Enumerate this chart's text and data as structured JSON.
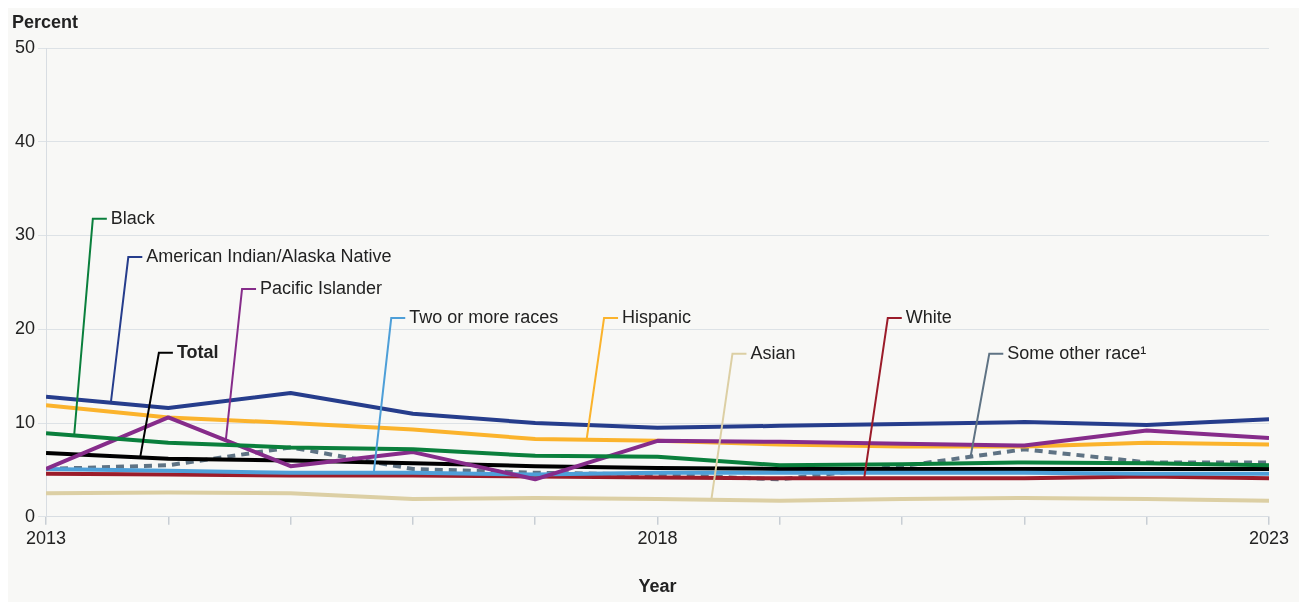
{
  "chart_data": {
    "type": "line",
    "xlabel": "Year",
    "ylabel": "Percent",
    "x": [
      2013,
      2014,
      2015,
      2016,
      2017,
      2018,
      2019,
      2020,
      2021,
      2022,
      2023
    ],
    "xlim": [
      2013,
      2023
    ],
    "xticks": [
      2013,
      {
        "value": 2014,
        "label": null
      },
      {
        "value": 2015,
        "label": null
      },
      {
        "value": 2016,
        "label": null
      },
      {
        "value": 2017,
        "label": null
      },
      2018,
      {
        "value": 2019,
        "label": null
      },
      {
        "value": 2020,
        "label": null
      },
      {
        "value": 2021,
        "label": null
      },
      {
        "value": 2022,
        "label": null
      },
      2023
    ],
    "ylim": [
      0,
      50
    ],
    "yticks": [
      0,
      10,
      20,
      30,
      40,
      50
    ],
    "grid": "y",
    "legend": false,
    "marker": "none",
    "series": [
      {
        "name": "Black",
        "color": "#0a7f3c",
        "values": [
          8.9,
          7.9,
          7.4,
          7.2,
          6.5,
          6.4,
          5.5,
          5.6,
          5.8,
          5.7,
          5.5
        ]
      },
      {
        "name": "American Indian/Alaska Native",
        "color": "#263d8c",
        "values": [
          12.8,
          11.6,
          13.2,
          11.0,
          10.0,
          9.5,
          9.7,
          9.9,
          10.1,
          9.8,
          10.4
        ]
      },
      {
        "name": "Pacific Islander",
        "color": "#862c8a",
        "values": [
          5.1,
          10.6,
          5.4,
          6.9,
          4.0,
          8.1,
          8.0,
          7.8,
          7.6,
          9.2,
          8.4
        ]
      },
      {
        "name": "Two or more races",
        "color": "#4e9fd8",
        "values": [
          5.1,
          4.9,
          4.7,
          4.7,
          4.5,
          4.7,
          4.7,
          4.7,
          4.7,
          4.6,
          4.6
        ]
      },
      {
        "name": "Hispanic",
        "color": "#fbb32c",
        "values": [
          11.9,
          10.6,
          10.0,
          9.3,
          8.3,
          8.1,
          7.7,
          7.5,
          7.5,
          7.9,
          7.7
        ]
      },
      {
        "name": "Total",
        "color": "#000000",
        "values": [
          6.8,
          6.2,
          6.0,
          5.7,
          5.4,
          5.2,
          5.1,
          5.1,
          5.1,
          5.1,
          5.1
        ]
      },
      {
        "name": "Asian",
        "color": "#dccfa4",
        "values": [
          2.5,
          2.6,
          2.5,
          1.9,
          2.0,
          1.9,
          1.7,
          1.9,
          2.0,
          1.9,
          1.7
        ]
      },
      {
        "name": "White",
        "color": "#9b1c2a",
        "values": [
          4.6,
          4.5,
          4.4,
          4.4,
          4.3,
          4.2,
          4.1,
          4.1,
          4.1,
          4.3,
          4.1
        ]
      },
      {
        "name": "Some other race¹",
        "color": "#5f7384",
        "line_style": "dashed",
        "values": [
          5.1,
          5.5,
          7.4,
          5.1,
          4.7,
          4.5,
          4.0,
          5.4,
          7.2,
          5.8,
          5.8
        ]
      }
    ]
  }
}
